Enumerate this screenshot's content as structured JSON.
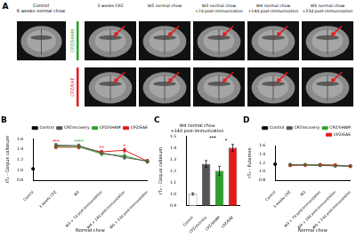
{
  "panel_a": {
    "label": "A",
    "control": {
      "title": [
        "Control",
        "6 weeks normal chow"
      ]
    },
    "columns": [
      [
        "3 weeks CPZ"
      ],
      [
        "W2 normal chow"
      ],
      [
        "W3 normal chow",
        "+7d post-immunization"
      ],
      [
        "W4 normal chow",
        "+14d post-immunization"
      ],
      [
        "W5 normal chow",
        "+23d post-immunization"
      ]
    ],
    "rows": [
      {
        "name": "CPZ/SHAM",
        "color": "#2ca02c"
      },
      {
        "name": "CPZ/EAE",
        "color": "#e31a1c"
      }
    ]
  },
  "chart_data": [
    {
      "panel": "B",
      "type": "line",
      "y_label": "rT₂ - Corpus callosum",
      "x_label": "Normal chow",
      "categories": [
        "Control",
        "3 weeks CPZ",
        "W2",
        "W3 + 7d post-immunization",
        "W4 + 14d post-immunization",
        "W5 + 23d post-immunization"
      ],
      "series": [
        {
          "name": "Control",
          "color": "#000000",
          "values": [
            1.02,
            null,
            null,
            null,
            null,
            null
          ],
          "errors": [
            0.02,
            null,
            null,
            null,
            null,
            null
          ]
        },
        {
          "name": "CPZrecovery",
          "color": "#555555",
          "values": [
            null,
            1.48,
            1.47,
            1.33,
            1.24,
            1.17
          ],
          "errors": [
            null,
            0.03,
            0.03,
            0.03,
            0.03,
            0.03
          ]
        },
        {
          "name": "CPZ/SHAM",
          "color": "#2ca02c",
          "values": [
            null,
            1.46,
            1.45,
            1.31,
            1.27,
            1.16
          ],
          "errors": [
            null,
            0.03,
            0.03,
            0.03,
            0.03,
            0.03
          ]
        },
        {
          "name": "CPZ/EAE",
          "color": "#e31a1c",
          "values": [
            null,
            1.44,
            1.44,
            1.35,
            1.38,
            1.17
          ],
          "errors": [
            null,
            0.03,
            0.03,
            0.03,
            0.04,
            0.03
          ]
        }
      ],
      "annotations": [
        {
          "text": "***",
          "x": 1,
          "y": 1.55,
          "color": "#e31a1c"
        },
        {
          "text": "****",
          "x": 2,
          "y": 1.54,
          "color": "#2ca02c"
        },
        {
          "text": "**",
          "x": 3,
          "y": 1.42,
          "color": "#e31a1c"
        },
        {
          "text": "*",
          "x": 4,
          "y": 1.46,
          "color": "#e31a1c"
        }
      ],
      "ylim": [
        0.8,
        1.6
      ],
      "yticks": [
        {
          "value": 0.8,
          "label": "0.8"
        },
        {
          "value": 1,
          "label": "1.0"
        },
        {
          "value": 1.2,
          "label": "1.2"
        },
        {
          "value": 1.4,
          "label": "1.4"
        },
        {
          "value": 1.6,
          "label": "1.6"
        }
      ],
      "grid": false,
      "legend": "upper right"
    },
    {
      "panel": "C",
      "type": "bar",
      "title": [
        "W4 normal chow",
        "+14d post-immunization"
      ],
      "y_label": "rT₂ - Corpus callosum",
      "categories": [
        "Control",
        "CPZrecovery",
        "CPZ/SHAM",
        "CPZ/EAE"
      ],
      "values": [
        1.0,
        1.26,
        1.2,
        1.4
      ],
      "errors": [
        0.01,
        0.03,
        0.04,
        0.03
      ],
      "colors": [
        "#ffffff",
        "#555555",
        "#2ca02c",
        "#e31a1c"
      ],
      "annotations": [
        {
          "text": "***",
          "x": 1.5,
          "y": 1.47,
          "color": "#000000"
        },
        {
          "text": "*",
          "x": 2.5,
          "y": 1.45,
          "color": "#000000"
        }
      ],
      "ylim": [
        0.9,
        1.5
      ],
      "yticks": [
        {
          "value": 0.9,
          "label": "0.9"
        },
        {
          "value": 1,
          "label": "1.0"
        },
        {
          "value": 1.1,
          "label": "1.1"
        },
        {
          "value": 1.2,
          "label": "1.2"
        },
        {
          "value": 1.3,
          "label": "1.3"
        },
        {
          "value": 1.4,
          "label": "1.4"
        },
        {
          "value": 1.5,
          "label": "1.5"
        }
      ],
      "grid": false
    },
    {
      "panel": "D",
      "type": "line",
      "y_label": "rT₂ - Putamen",
      "x_label": "Normal chow",
      "categories": [
        "Control",
        "3 weeks CPZ",
        "W2",
        "W3 + 7d post-immunization",
        "W4 + 14d post-immunization",
        "W5 + 23d post-immunization"
      ],
      "series": [
        {
          "name": "Control",
          "color": "#000000",
          "values": [
            1.17,
            null,
            null,
            null,
            null,
            null
          ],
          "errors": [
            0.02,
            null,
            null,
            null,
            null,
            null
          ]
        },
        {
          "name": "CPZrecovery",
          "color": "#555555",
          "values": [
            null,
            1.16,
            1.15,
            1.14,
            1.13,
            1.13
          ],
          "errors": [
            null,
            0.02,
            0.02,
            0.02,
            0.02,
            0.02
          ]
        },
        {
          "name": "CPZ/SHAM",
          "color": "#2ca02c",
          "values": [
            null,
            1.15,
            1.16,
            1.15,
            1.14,
            1.12
          ],
          "errors": [
            null,
            0.02,
            0.02,
            0.02,
            0.02,
            0.02
          ]
        },
        {
          "name": "CPZ/EAE",
          "color": "#e31a1c",
          "values": [
            null,
            1.14,
            1.15,
            1.16,
            1.15,
            1.12
          ],
          "errors": [
            null,
            0.02,
            0.02,
            0.02,
            0.02,
            0.02
          ]
        }
      ],
      "ylim": [
        0.8,
        1.6
      ],
      "yticks": [
        {
          "value": 0.8,
          "label": "0.8"
        },
        {
          "value": 1,
          "label": "1.0"
        },
        {
          "value": 1.2,
          "label": "1.2"
        },
        {
          "value": 1.4,
          "label": "1.4"
        },
        {
          "value": 1.6,
          "label": "1.6"
        }
      ],
      "grid": false,
      "legend": "upper right"
    }
  ]
}
